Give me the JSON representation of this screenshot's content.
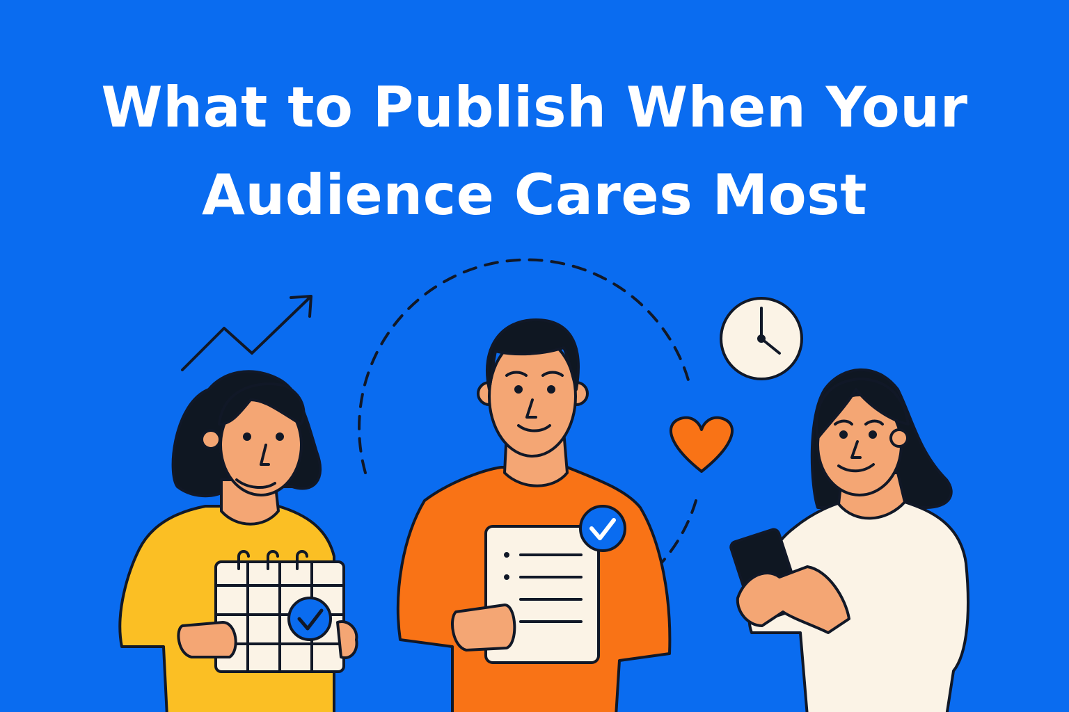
{
  "title": {
    "line1": "What to Publish When Your",
    "line2": "Audience Cares Most"
  },
  "colors": {
    "background": "#0A6CF0",
    "title": "#FFFFFF",
    "outline": "#111827",
    "skin": "#F4A674",
    "hair": "#0F1722",
    "yellow_shirt": "#FBBF24",
    "orange_shirt": "#F97316",
    "cream": "#FBF3E6",
    "heart": "#F97316",
    "check_badge": "#0A6CF0"
  },
  "icons": [
    "trend-up-arrow-icon",
    "calendar-icon",
    "checkmark-icon",
    "document-icon",
    "clock-icon",
    "heart-icon",
    "smartphone-icon"
  ]
}
